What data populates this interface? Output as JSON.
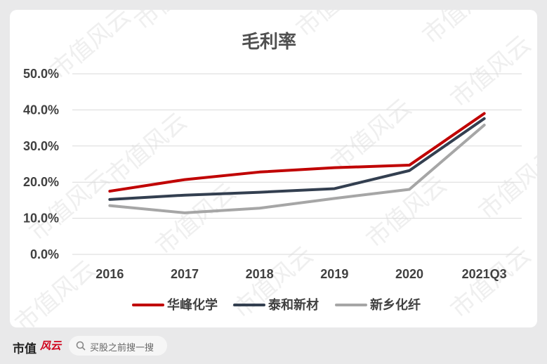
{
  "chart_data": {
    "type": "line",
    "title": "毛利率",
    "categories": [
      "2016",
      "2017",
      "2018",
      "2019",
      "2020",
      "2021Q3"
    ],
    "y_ticks": [
      "0.0%",
      "10.0%",
      "20.0%",
      "30.0%",
      "40.0%",
      "50.0%"
    ],
    "ylim": [
      0,
      50
    ],
    "grid": true,
    "legend_position": "bottom",
    "series": [
      {
        "name": "华峰化学",
        "color": "#c00000",
        "values": [
          17.5,
          20.7,
          22.8,
          24.0,
          24.7,
          39.0
        ]
      },
      {
        "name": "泰和新材",
        "color": "#333f50",
        "values": [
          15.2,
          16.4,
          17.2,
          18.2,
          23.2,
          37.6
        ]
      },
      {
        "name": "新乡化纤",
        "color": "#a6a6a6",
        "values": [
          13.5,
          11.5,
          12.8,
          15.5,
          18.0,
          35.8
        ]
      }
    ]
  },
  "watermark": "市值风云",
  "footer": {
    "brand": "市值",
    "brand_logo": "风云",
    "search_placeholder": "买股之前搜一搜"
  }
}
